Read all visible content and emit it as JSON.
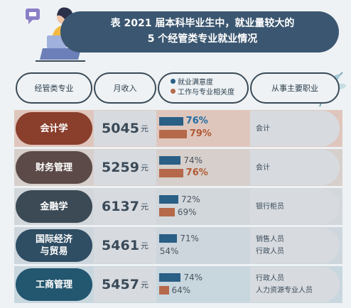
{
  "title": {
    "line1": "表 2021 届本科毕业生中，就业量较大的",
    "line2": "5 个经管类专业就业情况"
  },
  "headers": {
    "major": "经管类专业",
    "income": "月收入",
    "jobs": "从事主要职业"
  },
  "legend": [
    {
      "label": "就业满意度",
      "color": "#2a5f86"
    },
    {
      "label": "工作与专业相关度",
      "color": "#b5694a"
    }
  ],
  "income_unit": "元",
  "colors": {
    "satisfaction": "#2a5f86",
    "relevance": "#b5694a",
    "satisfaction_highlight": "#1f6da3",
    "relevance_highlight": "#b05a34"
  },
  "rows": [
    {
      "major_lines": [
        "会计学"
      ],
      "income": "5045",
      "satisfaction_label": "76%",
      "relevance_label": "79%",
      "hl_sat": true,
      "hl_rel": true,
      "jobs": [
        "会计"
      ],
      "pill_color": "#8a3e2c",
      "row_color": "#dfc6bd"
    },
    {
      "major_lines": [
        "财务管理"
      ],
      "income": "5259",
      "satisfaction_label": "74%",
      "relevance_label": "76%",
      "hl_sat": false,
      "hl_rel": true,
      "jobs": [
        "会计"
      ],
      "pill_color": "#5b4a47",
      "row_color": "#d6cfcb"
    },
    {
      "major_lines": [
        "金融学"
      ],
      "income": "6137",
      "satisfaction_label": "72%",
      "relevance_label": "69%",
      "hl_sat": false,
      "hl_rel": false,
      "jobs": [
        "银行柜员"
      ],
      "pill_color": "#3b4a55",
      "row_color": "#d2d7db"
    },
    {
      "major_lines": [
        "国际经济",
        "与贸易"
      ],
      "income": "5461",
      "satisfaction_label": "71%",
      "relevance_label": "54%",
      "hl_sat": false,
      "hl_rel": false,
      "jobs": [
        "销售人员",
        "行政人员"
      ],
      "pill_color": "#2f4d63",
      "row_color": "#cdd6dc"
    },
    {
      "major_lines": [
        "工商管理"
      ],
      "income": "5457",
      "satisfaction_label": "74%",
      "relevance_label": "64%",
      "hl_sat": false,
      "hl_rel": false,
      "jobs": [
        "行政人员",
        "人力资源专业人员"
      ],
      "pill_color": "#23566f",
      "row_color": "#c8d6de"
    }
  ],
  "chart_data": {
    "type": "bar",
    "categories": [
      "会计学",
      "财务管理",
      "金融学",
      "国际经济与贸易",
      "工商管理"
    ],
    "series": [
      {
        "name": "就业满意度",
        "values": [
          76,
          74,
          72,
          71,
          74
        ]
      },
      {
        "name": "工作与专业相关度",
        "values": [
          79,
          76,
          69,
          54,
          64
        ]
      }
    ],
    "monthly_income": [
      5045,
      5259,
      6137,
      5461,
      5457
    ]
  }
}
